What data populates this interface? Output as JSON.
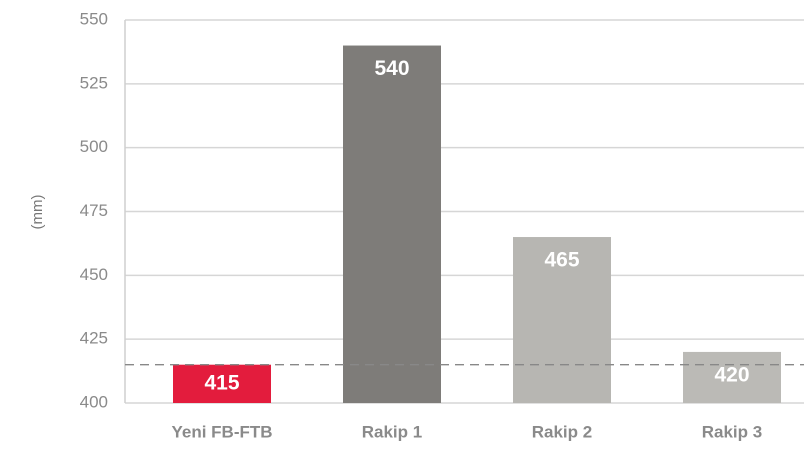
{
  "chart_data": {
    "type": "bar",
    "y_label": "(mm)",
    "categories": [
      "Yeni FB-FTB",
      "Rakip 1",
      "Rakip 2",
      "Rakip 3"
    ],
    "values": [
      415,
      540,
      465,
      420
    ],
    "colors": [
      "#e31c3d",
      "#7e7c79",
      "#b7b6b2",
      "#bbbab6"
    ],
    "ylim": [
      400,
      550
    ],
    "yticks": [
      400,
      425,
      450,
      475,
      500,
      525,
      550
    ],
    "grid": true,
    "reference_line": 415
  }
}
